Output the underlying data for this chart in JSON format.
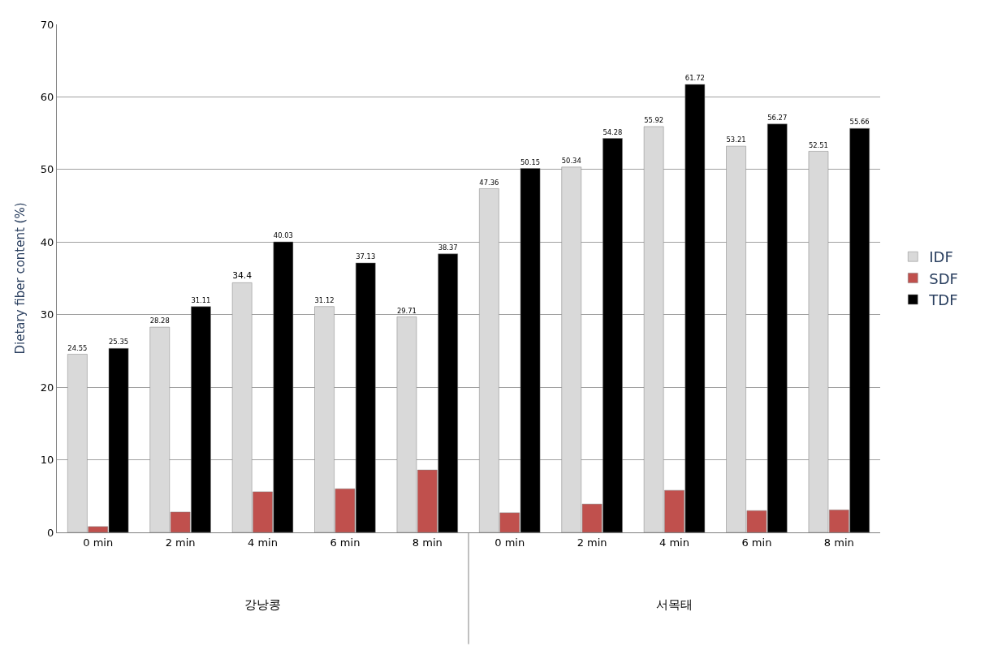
{
  "chart_data": {
    "type": "bar",
    "ylabel": "Dietary fiber content (%)",
    "categories": [
      "0 min",
      "2 min",
      "4 min",
      "6 min",
      "8 min",
      "0 min",
      "2 min",
      "4 min",
      "6 min",
      "8 min"
    ],
    "series": [
      {
        "name": "IDF",
        "color": "#d9d9d9",
        "values": [
          24.55,
          28.28,
          34.4,
          31.12,
          29.71,
          47.36,
          50.34,
          55.92,
          53.21,
          52.51
        ],
        "value_labels": [
          "24.55",
          "28.28",
          "34.4",
          "31.12",
          "29.71",
          "47.36",
          "50.34",
          "55.92",
          "53.21",
          "52.51"
        ]
      },
      {
        "name": "SDF",
        "color": "#c0504d",
        "values": [
          0.8,
          2.8,
          5.6,
          6.0,
          8.6,
          2.7,
          3.9,
          5.8,
          3.0,
          3.1
        ]
      },
      {
        "name": "TDF",
        "color": "#000000",
        "values": [
          25.35,
          31.11,
          40.03,
          37.13,
          38.37,
          50.15,
          54.28,
          61.72,
          56.27,
          55.66
        ],
        "value_labels": [
          "25.35",
          "31.11",
          "40.03",
          "37.13",
          "38.37",
          "50.15",
          "54.28",
          "61.72",
          "56.27",
          "55.66"
        ]
      }
    ],
    "annotations": [
      "강낭콩",
      "서목태"
    ],
    "ylim": [
      0,
      70
    ],
    "yticks": [
      0,
      10,
      20,
      30,
      40,
      50,
      60,
      70
    ],
    "grid": "y",
    "legend": "right"
  }
}
